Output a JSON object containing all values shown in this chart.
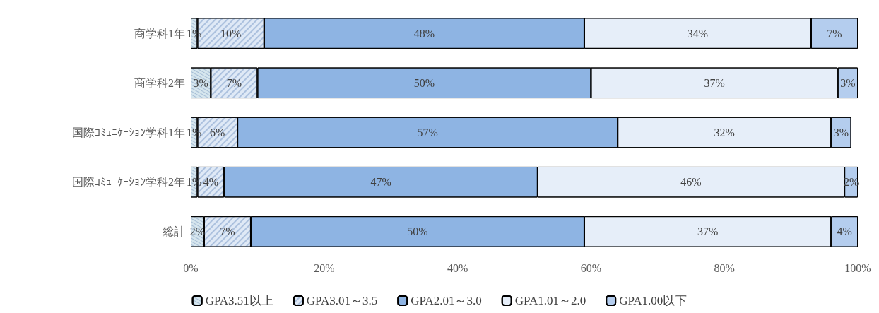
{
  "chart_data": {
    "type": "bar",
    "orientation": "horizontal",
    "stacked": true,
    "categories": [
      "商学科1年",
      "商学科2年",
      "国際ｺﾐｭﾆｹｰｼｮﾝ学科1年",
      "国際ｺﾐｭﾆｹｰｼｮﾝ学科2年",
      "総計"
    ],
    "series": [
      {
        "name": "GPA3.51以上",
        "color": "#d6e6ee",
        "values": [
          1,
          3,
          1,
          1,
          2
        ],
        "value_labels": [
          "1%",
          "3%",
          "1%",
          "1%",
          "2%"
        ]
      },
      {
        "name": "GPA3.01～3.5",
        "color": "#dfe9f6",
        "values": [
          10,
          7,
          6,
          4,
          7
        ],
        "value_labels": [
          "10%",
          "7%",
          "6%",
          "4%",
          "7%"
        ]
      },
      {
        "name": "GPA2.01～3.0",
        "color": "#8eb4e3",
        "values": [
          48,
          50,
          57,
          47,
          50
        ],
        "value_labels": [
          "48%",
          "50%",
          "57%",
          "47%",
          "50%"
        ]
      },
      {
        "name": "GPA1.01～2.0",
        "color": "#e6eef9",
        "values": [
          34,
          37,
          32,
          46,
          37
        ],
        "value_labels": [
          "34%",
          "37%",
          "32%",
          "46%",
          "37%"
        ]
      },
      {
        "name": "GPA1.00以下",
        "color": "#b4cdee",
        "values": [
          7,
          3,
          3,
          2,
          4
        ],
        "value_labels": [
          "7%",
          "3%",
          "3%",
          "2%",
          "4%"
        ]
      }
    ],
    "xlim": [
      0,
      100
    ],
    "xticks": [
      {
        "value": 0,
        "label": "0%"
      },
      {
        "value": 20,
        "label": "20%"
      },
      {
        "value": 40,
        "label": "40%"
      },
      {
        "value": 60,
        "label": "60%"
      },
      {
        "value": 80,
        "label": "80%"
      },
      {
        "value": 100,
        "label": "100%"
      }
    ],
    "grid": false,
    "legend": "bottom"
  }
}
